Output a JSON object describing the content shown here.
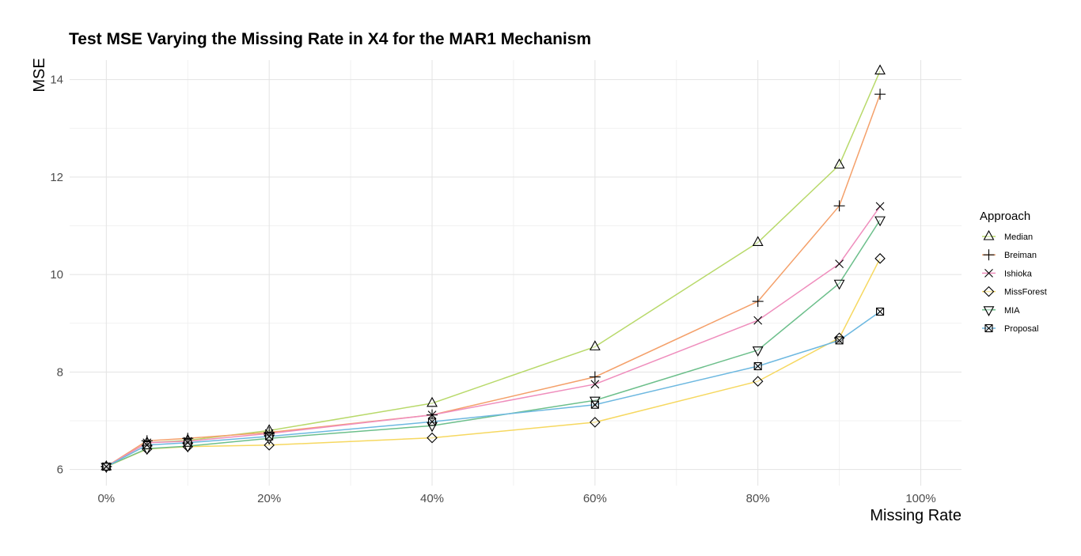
{
  "chart_data": {
    "type": "line",
    "title": "Test MSE Varying the Missing Rate in X4 for the MAR1 Mechanism",
    "xlabel": "Missing Rate",
    "ylabel": "MSE",
    "x": [
      0,
      0.05,
      0.1,
      0.2,
      0.4,
      0.6,
      0.8,
      0.9,
      0.95
    ],
    "xlim": [
      -0.045,
      1.05
    ],
    "ylim": [
      5.67,
      14.4
    ],
    "x_ticks": [
      0,
      0.2,
      0.4,
      0.6,
      0.8,
      1.0
    ],
    "x_tick_labels": [
      "0%",
      "20%",
      "40%",
      "60%",
      "80%",
      "100%"
    ],
    "y_ticks": [
      6,
      8,
      10,
      12,
      14
    ],
    "y_tick_labels": [
      "6",
      "8",
      "10",
      "12",
      "14"
    ],
    "grid": true,
    "legend": {
      "title": "Approach",
      "position": "right"
    },
    "series": [
      {
        "name": "Median",
        "color": "#b8d96a",
        "marker": "triangle-up",
        "values": [
          6.06,
          6.55,
          6.6,
          6.8,
          7.36,
          8.52,
          10.66,
          12.25,
          14.18
        ]
      },
      {
        "name": "Breiman",
        "color": "#f4a06a",
        "marker": "plus",
        "values": [
          6.06,
          6.59,
          6.64,
          6.76,
          7.12,
          7.9,
          9.45,
          11.41,
          13.7
        ]
      },
      {
        "name": "Ishioka",
        "color": "#ef8ebd",
        "marker": "cross",
        "values": [
          6.06,
          6.55,
          6.58,
          6.74,
          7.12,
          7.75,
          9.06,
          10.22,
          11.4
        ]
      },
      {
        "name": "MissForest",
        "color": "#f6d860",
        "marker": "diamond",
        "values": [
          6.06,
          6.42,
          6.47,
          6.5,
          6.65,
          6.97,
          7.81,
          8.7,
          10.33
        ]
      },
      {
        "name": "MIA",
        "color": "#6cbf8b",
        "marker": "triangle-down",
        "values": [
          6.06,
          6.43,
          6.48,
          6.64,
          6.9,
          7.42,
          8.45,
          9.82,
          11.12
        ]
      },
      {
        "name": "Proposal",
        "color": "#6db8e0",
        "marker": "square-x",
        "values": [
          6.06,
          6.5,
          6.55,
          6.68,
          6.98,
          7.33,
          8.12,
          8.65,
          9.24
        ]
      }
    ]
  }
}
